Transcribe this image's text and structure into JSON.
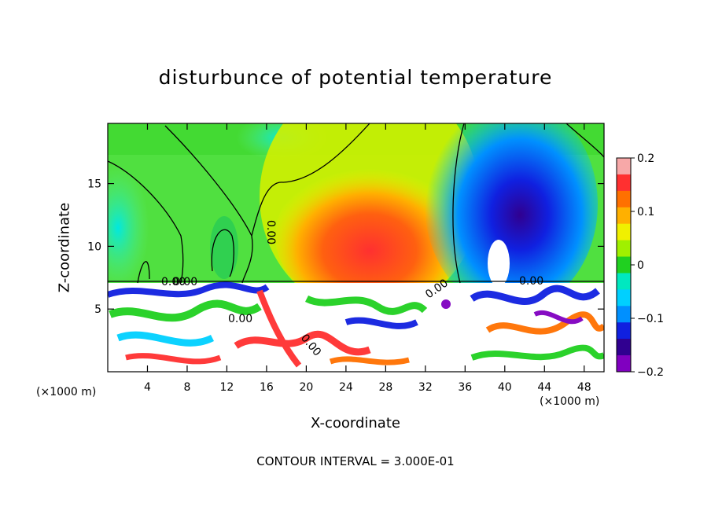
{
  "chart_data": {
    "type": "heatmap",
    "title": "disturbunce of potential temperature",
    "xlabel": "X-coordinate",
    "ylabel": "Z-coordinate",
    "x_unit_left": "(×1000 m)",
    "x_unit_right": "(×1000 m)",
    "x_ticks": [
      "4",
      "8",
      "12",
      "16",
      "20",
      "24",
      "28",
      "32",
      "36",
      "40",
      "44",
      "48"
    ],
    "y_ticks": [
      "5",
      "10",
      "15"
    ],
    "xlim": [
      0,
      50
    ],
    "ylim": [
      0,
      19.8
    ],
    "colorbar": {
      "ticks": [
        "0.2",
        "0.1",
        "0",
        "−0.1",
        "−0.2"
      ],
      "range": [
        -0.2,
        0.2
      ],
      "colors": [
        "#f7a8a8",
        "#ff3030",
        "#ff7000",
        "#ffb000",
        "#f0f000",
        "#a0f000",
        "#20d020",
        "#00e8c0",
        "#00d0ff",
        "#0090ff",
        "#1020e0",
        "#300090",
        "#8000c0"
      ]
    },
    "contour_labels": [
      "0.00",
      "0.00",
      "0.00",
      "0.00",
      "0.00",
      "0.00",
      "0.00"
    ],
    "contour_interval": "CONTOUR INTERVAL = 3.000E-01"
  }
}
